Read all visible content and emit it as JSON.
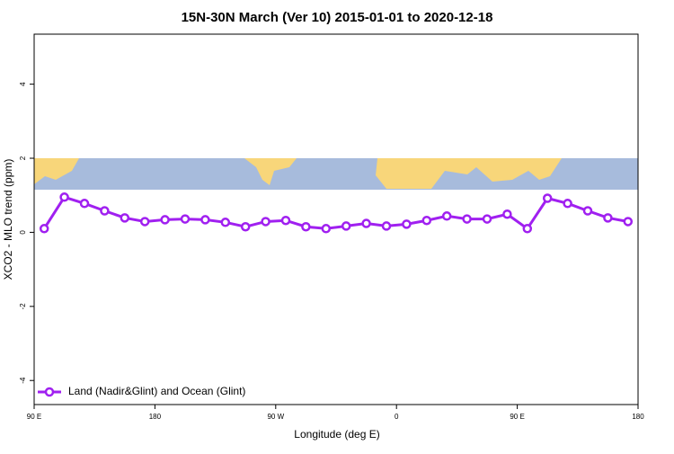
{
  "chart_data": {
    "type": "line",
    "title": "15N-30N March (Ver 10)   2015-01-01 to 2020-12-18",
    "x_label": "Longitude (deg E)",
    "y_label": "XCO2 - MLO trend (ppm)",
    "x": [
      97.5,
      112.5,
      127.5,
      142.5,
      157.5,
      172.5,
      187.5,
      202.5,
      217.5,
      232.5,
      247.5,
      262.5,
      277.5,
      292.5,
      307.5,
      322.5,
      337.5,
      352.5,
      367.5,
      382.5,
      397.5,
      412.5,
      427.5,
      442.5,
      457.5,
      472.5,
      487.5,
      502.5,
      517.5,
      532.5
    ],
    "series": [
      {
        "name": "Land (Nadir&Glint) and Ocean (Glint)",
        "color": "#a020f0",
        "values": [
          0.1,
          0.95,
          0.78,
          0.58,
          0.39,
          0.29,
          0.34,
          0.36,
          0.34,
          0.27,
          0.15,
          0.29,
          0.32,
          0.15,
          0.1,
          0.17,
          0.24,
          0.17,
          0.22,
          0.32,
          0.44,
          0.36,
          0.36,
          0.49,
          0.1,
          0.92,
          0.78,
          0.58,
          0.39,
          0.29
        ]
      }
    ],
    "xlim": [
      90,
      540
    ],
    "ylim": [
      -4.65,
      5.35
    ],
    "xticks": [
      {
        "value": 90,
        "label": "90 E"
      },
      180,
      {
        "value": 270,
        "label": "90 W"
      },
      {
        "value": 360,
        "label": "0"
      },
      {
        "value": 450,
        "label": "90 E"
      },
      {
        "value": 540,
        "label": "180"
      }
    ],
    "yticks": [
      -4,
      -2,
      0,
      2,
      4
    ],
    "legend": "bottom-left"
  }
}
